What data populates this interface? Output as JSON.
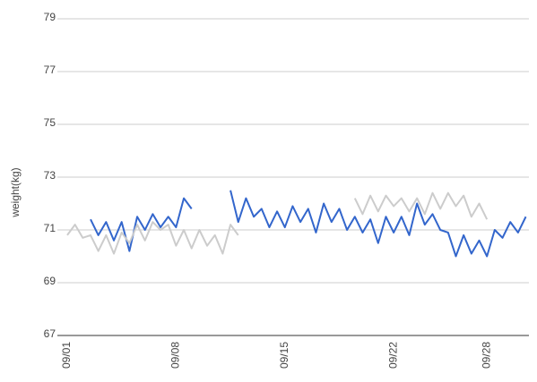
{
  "chart_data": {
    "type": "line",
    "y_label": "weight(kg)",
    "categories": [
      "09/01",
      null,
      null,
      null,
      null,
      null,
      null,
      null,
      null,
      null,
      null,
      null,
      null,
      null,
      "09/08",
      null,
      null,
      null,
      null,
      null,
      null,
      null,
      null,
      null,
      null,
      null,
      null,
      null,
      "09/15",
      null,
      null,
      null,
      null,
      null,
      null,
      null,
      null,
      null,
      null,
      null,
      null,
      null,
      "09/22",
      null,
      null,
      null,
      null,
      null,
      null,
      null,
      null,
      null,
      null,
      null,
      "09/28",
      null,
      null,
      null,
      null,
      null
    ],
    "series": [
      {
        "color": "#3366cc",
        "values": [
          null,
          null,
          null,
          71.4,
          70.8,
          71.3,
          70.6,
          71.3,
          70.2,
          71.5,
          71.0,
          71.6,
          71.1,
          71.5,
          71.1,
          72.2,
          71.8,
          null,
          null,
          null,
          null,
          72.5,
          71.3,
          72.2,
          71.5,
          71.8,
          71.1,
          71.7,
          71.1,
          71.9,
          71.3,
          71.8,
          70.9,
          72.0,
          71.3,
          71.8,
          71.0,
          71.5,
          70.9,
          71.4,
          70.5,
          71.5,
          70.9,
          71.5,
          70.8,
          72.0,
          71.2,
          71.6,
          71.0,
          70.9,
          70.0,
          70.8,
          70.1,
          70.6,
          70.0,
          71.0,
          70.7,
          71.3,
          70.9,
          71.5
        ]
      },
      {
        "color": "#cccccc",
        "values": [
          70.8,
          71.2,
          70.7,
          70.8,
          70.2,
          70.8,
          70.1,
          70.9,
          70.5,
          71.2,
          70.6,
          71.3,
          71.0,
          71.2,
          70.4,
          71.0,
          70.3,
          71.0,
          70.4,
          70.8,
          70.1,
          71.2,
          70.8,
          null,
          null,
          null,
          null,
          null,
          null,
          null,
          null,
          null,
          null,
          null,
          null,
          null,
          null,
          72.2,
          71.6,
          72.3,
          71.7,
          72.3,
          71.9,
          72.2,
          71.7,
          72.2,
          71.6,
          72.4,
          71.8,
          72.4,
          71.9,
          72.3,
          71.5,
          72.0,
          71.4,
          null,
          null,
          null,
          null,
          null
        ]
      }
    ],
    "ylim": [
      67,
      79
    ],
    "yticks": [
      67,
      69,
      71,
      73,
      75,
      77,
      79
    ],
    "grid": true
  }
}
